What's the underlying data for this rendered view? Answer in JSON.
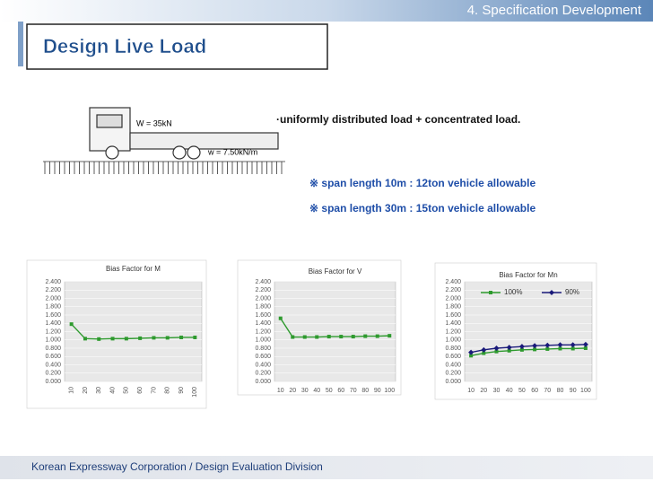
{
  "header": "4. Specification  Development",
  "title": "Design Live Load",
  "figure": {
    "point_load": "W = 35kN",
    "distributed_load": "w = 7.50kN/m"
  },
  "notes": [
    "·uniformly distributed load + concentrated load.",
    "※ span length 10m :  12ton vehicle allowable",
    "※ span length 30m : 15ton vehicle allowable"
  ],
  "footer": "Korean Expressway Corporation / Design Evaluation Division",
  "chart_data": [
    {
      "type": "line",
      "title": "Bias Factor for M",
      "categories": [
        "10",
        "20",
        "30",
        "40",
        "50",
        "60",
        "70",
        "80",
        "90",
        "100"
      ],
      "values": [
        1.38,
        1.03,
        1.02,
        1.03,
        1.03,
        1.04,
        1.05,
        1.05,
        1.06,
        1.06
      ],
      "color": "#2e9a2e",
      "marker": "square",
      "ylim": [
        0,
        2.4
      ],
      "yticks": [
        {
          "value": 0,
          "label": "0.000"
        },
        {
          "value": 0.2,
          "label": "0.200"
        },
        {
          "value": 0.4,
          "label": "0.400"
        },
        {
          "value": 0.6,
          "label": "0.600"
        },
        {
          "value": 0.8,
          "label": "0.800"
        },
        {
          "value": 1,
          "label": "1.000"
        },
        {
          "value": 1.2,
          "label": "1.200"
        },
        {
          "value": 1.4,
          "label": "1.400"
        },
        {
          "value": 1.6,
          "label": "1.600"
        },
        {
          "value": 1.8,
          "label": "1.800"
        },
        {
          "value": 2,
          "label": "2.000"
        },
        {
          "value": 2.2,
          "label": "2.200"
        },
        {
          "value": 2.4,
          "label": "2.400"
        }
      ],
      "grid": true
    },
    {
      "type": "line",
      "title": "Bias Factor for V",
      "categories": [
        "10",
        "20",
        "30",
        "40",
        "50",
        "60",
        "70",
        "80",
        "90",
        "100"
      ],
      "values": [
        1.52,
        1.07,
        1.07,
        1.07,
        1.08,
        1.08,
        1.08,
        1.09,
        1.09,
        1.1
      ],
      "color": "#2e9a2e",
      "marker": "square",
      "ylim": [
        0,
        2.4
      ],
      "yticks": [
        {
          "value": 0,
          "label": "0.000"
        },
        {
          "value": 0.2,
          "label": "0.200"
        },
        {
          "value": 0.4,
          "label": "0.400"
        },
        {
          "value": 0.6,
          "label": "0.600"
        },
        {
          "value": 0.8,
          "label": "0.800"
        },
        {
          "value": 1,
          "label": "1.000"
        },
        {
          "value": 1.2,
          "label": "1.200"
        },
        {
          "value": 1.4,
          "label": "1.400"
        },
        {
          "value": 1.6,
          "label": "1.600"
        },
        {
          "value": 1.8,
          "label": "1.800"
        },
        {
          "value": 2,
          "label": "2.000"
        },
        {
          "value": 2.2,
          "label": "2.200"
        },
        {
          "value": 2.4,
          "label": "2.400"
        }
      ],
      "grid": true
    },
    {
      "type": "line",
      "title": "Bias Factor for Mn",
      "categories": [
        "10",
        "20",
        "30",
        "40",
        "50",
        "60",
        "70",
        "80",
        "90",
        "100"
      ],
      "series": [
        {
          "name": "100%",
          "color": "#2e9a2e",
          "marker": "square",
          "values": [
            0.62,
            0.68,
            0.72,
            0.74,
            0.76,
            0.77,
            0.78,
            0.79,
            0.79,
            0.8
          ]
        },
        {
          "name": "90%",
          "color": "#1a1a7a",
          "marker": "diamond",
          "values": [
            0.7,
            0.76,
            0.8,
            0.82,
            0.84,
            0.86,
            0.87,
            0.88,
            0.88,
            0.89
          ]
        }
      ],
      "ylim": [
        0,
        2.4
      ],
      "yticks": [
        {
          "value": 0,
          "label": "0.000"
        },
        {
          "value": 0.2,
          "label": "0.200"
        },
        {
          "value": 0.4,
          "label": "0.400"
        },
        {
          "value": 0.6,
          "label": "0.600"
        },
        {
          "value": 0.8,
          "label": "0.800"
        },
        {
          "value": 1,
          "label": "1.000"
        },
        {
          "value": 1.2,
          "label": "1.200"
        },
        {
          "value": 1.4,
          "label": "1.400"
        },
        {
          "value": 1.6,
          "label": "1.600"
        },
        {
          "value": 1.8,
          "label": "1.800"
        },
        {
          "value": 2,
          "label": "2.000"
        },
        {
          "value": 2.2,
          "label": "2.200"
        },
        {
          "value": 2.4,
          "label": "2.400"
        }
      ],
      "grid": true
    }
  ]
}
